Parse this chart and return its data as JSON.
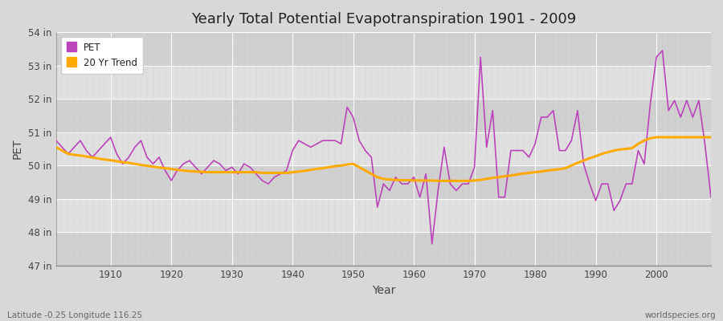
{
  "title": "Yearly Total Potential Evapotranspiration 1901 - 2009",
  "xlabel": "Year",
  "ylabel": "PET",
  "subtitle_left": "Latitude -0.25 Longitude 116.25",
  "subtitle_right": "worldspecies.org",
  "ylim": [
    47,
    54
  ],
  "xlim": [
    1901,
    2009
  ],
  "yticks": [
    47,
    48,
    49,
    50,
    51,
    52,
    53,
    54
  ],
  "ytick_labels": [
    "47 in",
    "48 in",
    "49 in",
    "50 in",
    "51 in",
    "52 in",
    "53 in",
    "54 in"
  ],
  "xticks": [
    1910,
    1920,
    1930,
    1940,
    1950,
    1960,
    1970,
    1980,
    1990,
    2000
  ],
  "pet_color": "#bb44bb",
  "trend_color": "#ffaa00",
  "background_color": "#d8d8d8",
  "plot_bg_dark": "#d0d0d0",
  "plot_bg_light": "#e0e0e0",
  "grid_color": "#ffffff",
  "minor_grid_color": "#c8c8c8",
  "years": [
    1901,
    1902,
    1903,
    1904,
    1905,
    1906,
    1907,
    1908,
    1909,
    1910,
    1911,
    1912,
    1913,
    1914,
    1915,
    1916,
    1917,
    1918,
    1919,
    1920,
    1921,
    1922,
    1923,
    1924,
    1925,
    1926,
    1927,
    1928,
    1929,
    1930,
    1931,
    1932,
    1933,
    1934,
    1935,
    1936,
    1937,
    1938,
    1939,
    1940,
    1941,
    1942,
    1943,
    1944,
    1945,
    1946,
    1947,
    1948,
    1949,
    1950,
    1951,
    1952,
    1953,
    1954,
    1955,
    1956,
    1957,
    1958,
    1959,
    1960,
    1961,
    1962,
    1963,
    1964,
    1965,
    1966,
    1967,
    1968,
    1969,
    1970,
    1971,
    1972,
    1973,
    1974,
    1975,
    1976,
    1977,
    1978,
    1979,
    1980,
    1981,
    1982,
    1983,
    1984,
    1985,
    1986,
    1987,
    1988,
    1989,
    1990,
    1991,
    1992,
    1993,
    1994,
    1995,
    1996,
    1997,
    1998,
    1999,
    2000,
    2001,
    2002,
    2003,
    2004,
    2005,
    2006,
    2007,
    2008,
    2009
  ],
  "pet": [
    50.75,
    50.55,
    50.35,
    50.55,
    50.75,
    50.45,
    50.25,
    50.45,
    50.65,
    50.85,
    50.35,
    50.05,
    50.25,
    50.55,
    50.75,
    50.25,
    50.05,
    50.25,
    49.85,
    49.55,
    49.85,
    50.05,
    50.15,
    49.95,
    49.75,
    49.95,
    50.15,
    50.05,
    49.85,
    49.95,
    49.75,
    50.05,
    49.95,
    49.75,
    49.55,
    49.45,
    49.65,
    49.75,
    49.85,
    50.45,
    50.75,
    50.65,
    50.55,
    50.65,
    50.75,
    50.75,
    50.75,
    50.65,
    51.75,
    51.45,
    50.75,
    50.45,
    50.25,
    48.75,
    49.45,
    49.25,
    49.65,
    49.45,
    49.45,
    49.65,
    49.05,
    49.75,
    47.65,
    49.25,
    50.55,
    49.45,
    49.25,
    49.45,
    49.45,
    49.95,
    53.25,
    50.55,
    51.65,
    49.05,
    49.05,
    50.45,
    50.45,
    50.45,
    50.25,
    50.65,
    51.45,
    51.45,
    51.65,
    50.45,
    50.45,
    50.75,
    51.65,
    50.05,
    49.45,
    48.95,
    49.45,
    49.45,
    48.65,
    48.95,
    49.45,
    49.45,
    50.45,
    50.05,
    51.85,
    53.25,
    53.45,
    51.65,
    51.95,
    51.45,
    51.95,
    51.45,
    51.95,
    50.65,
    49.05
  ],
  "trend": [
    50.55,
    50.45,
    50.35,
    50.32,
    50.3,
    50.27,
    50.24,
    50.21,
    50.18,
    50.16,
    50.13,
    50.1,
    50.08,
    50.05,
    50.02,
    49.99,
    49.97,
    49.94,
    49.92,
    49.9,
    49.87,
    49.85,
    49.83,
    49.82,
    49.81,
    49.8,
    49.8,
    49.8,
    49.8,
    49.8,
    49.8,
    49.8,
    49.8,
    49.8,
    49.78,
    49.78,
    49.78,
    49.78,
    49.78,
    49.8,
    49.82,
    49.84,
    49.87,
    49.9,
    49.92,
    49.95,
    49.98,
    50.0,
    50.03,
    50.05,
    49.95,
    49.85,
    49.75,
    49.65,
    49.6,
    49.58,
    49.57,
    49.56,
    49.56,
    49.55,
    49.55,
    49.55,
    49.55,
    49.54,
    49.54,
    49.54,
    49.54,
    49.54,
    49.54,
    49.55,
    49.57,
    49.6,
    49.63,
    49.65,
    49.68,
    49.7,
    49.73,
    49.76,
    49.78,
    49.8,
    49.82,
    49.85,
    49.87,
    49.89,
    49.92,
    50.0,
    50.08,
    50.15,
    50.22,
    50.28,
    50.35,
    50.4,
    50.45,
    50.48,
    50.5,
    50.52,
    50.65,
    50.75,
    50.82,
    50.85,
    50.85,
    50.85,
    50.85,
    50.85,
    50.85,
    50.85,
    50.85,
    50.85,
    50.85
  ]
}
